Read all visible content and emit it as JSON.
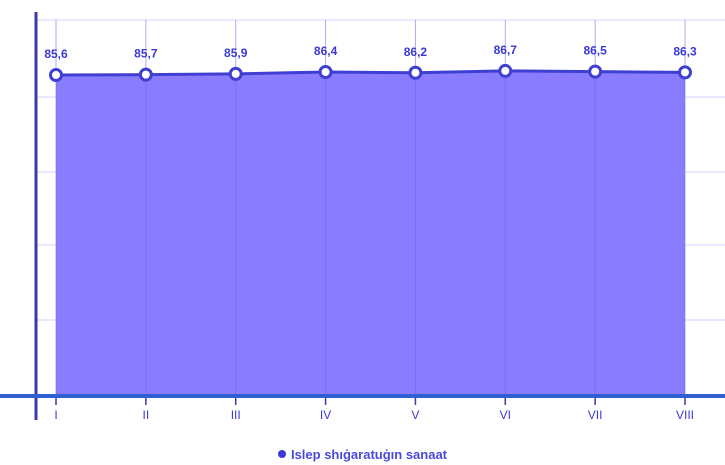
{
  "chart_data": {
    "type": "area",
    "categories": [
      "I",
      "II",
      "III",
      "IV",
      "V",
      "VI",
      "VII",
      "VIII"
    ],
    "series": [
      {
        "name": "Islep shıġaratuġın sanaat",
        "values": [
          85.6,
          85.7,
          85.9,
          86.4,
          86.2,
          86.7,
          86.5,
          86.3
        ],
        "labels": [
          "85,6",
          "85,7",
          "85,9",
          "86,4",
          "86,2",
          "86,7",
          "86,5",
          "86,3"
        ]
      }
    ],
    "ylim": [
      0,
      100
    ],
    "grid": true,
    "legend_position": "bottom",
    "colors": {
      "area_fill": "#8a7cff",
      "line": "#3f3fd2",
      "marker_fill": "#ffffff",
      "axis": "#3a3aa8",
      "baseline": "#2f5fd0",
      "label": "#3a3ad6",
      "grid": "#cfd3ff"
    }
  }
}
